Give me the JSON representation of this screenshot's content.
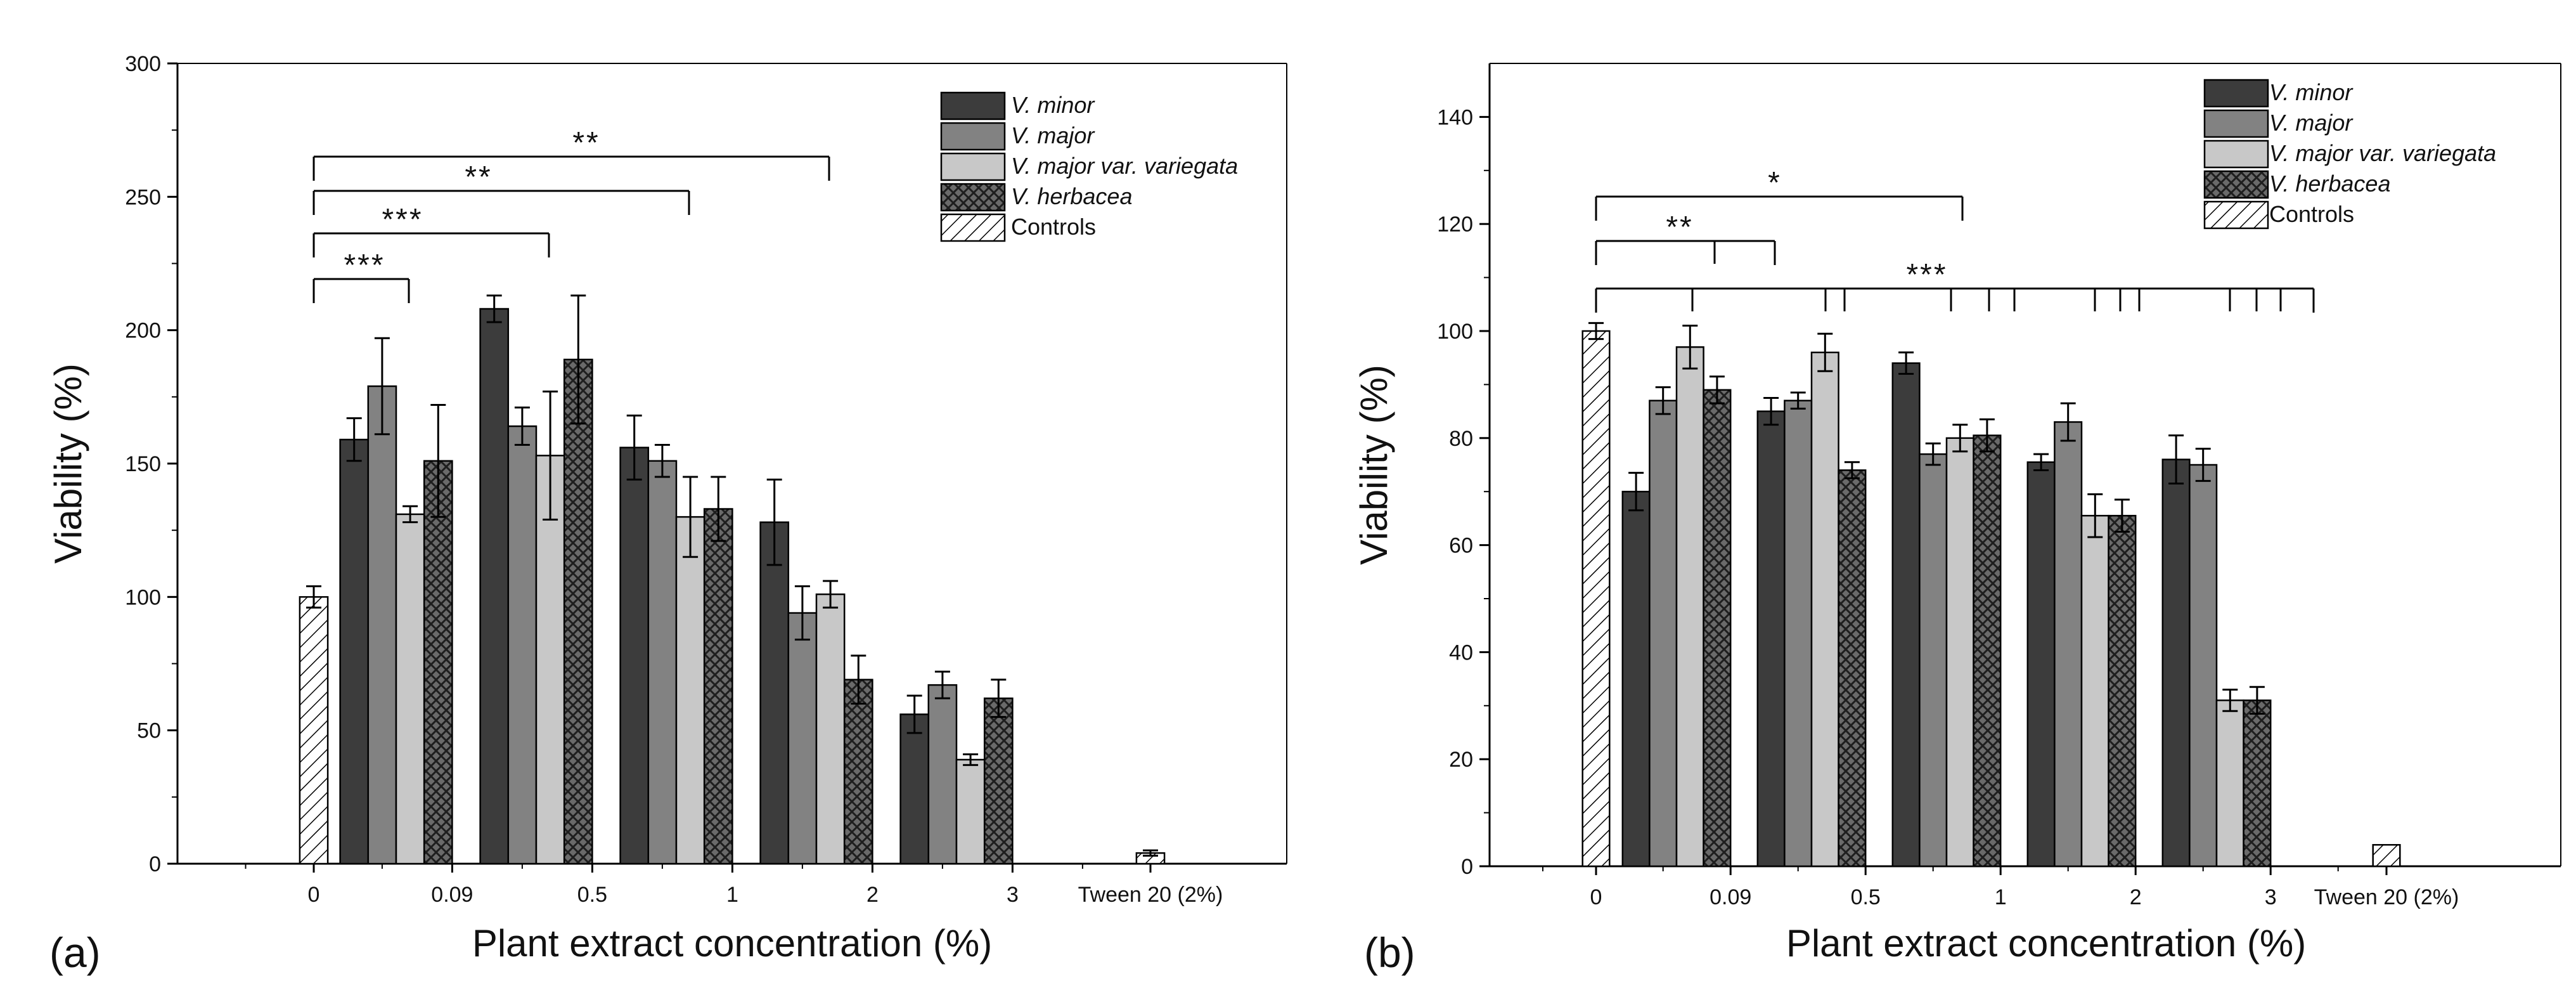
{
  "chart_data": [
    {
      "type": "bar",
      "panel_label": "(a)",
      "xlabel": "Plant extract concentration (%)",
      "ylabel": "Viability (%)",
      "ylim": [
        0,
        300
      ],
      "yticks": [
        0,
        50,
        100,
        150,
        200,
        250,
        300
      ],
      "ytick_labels": [
        "0",
        "50",
        "100",
        "150",
        "200",
        "250",
        "300"
      ],
      "grid": false,
      "legend_position": "top-right",
      "categories": [
        "0.09",
        "0.5",
        "1",
        "2",
        "3"
      ],
      "series": [
        {
          "name": "V. minor",
          "values": [
            159,
            208,
            156,
            128,
            56
          ],
          "errors": [
            8,
            5,
            12,
            16,
            7
          ]
        },
        {
          "name": "V. major",
          "values": [
            179,
            164,
            151,
            94,
            67
          ],
          "errors": [
            18,
            7,
            6,
            10,
            5
          ]
        },
        {
          "name": "V. major var. variegata",
          "values": [
            131,
            153,
            130,
            101,
            39
          ],
          "errors": [
            3,
            24,
            15,
            5,
            2
          ]
        },
        {
          "name": "V. herbacea",
          "values": [
            151,
            189,
            133,
            69,
            62
          ],
          "errors": [
            21,
            24,
            12,
            9,
            7
          ]
        }
      ],
      "controls": {
        "name": "Controls",
        "points": [
          {
            "label": "0",
            "value": 100,
            "error": 4
          },
          {
            "label": "Tween 20 (2%)",
            "value": 4,
            "error": 1
          }
        ]
      },
      "x_labels": [
        "0",
        "0.09",
        "0.5",
        "1",
        "2",
        "3",
        "Tween 20 (2%)"
      ],
      "significance": [
        {
          "text": "***",
          "from": "0",
          "to": "0.09 / V. minor"
        },
        {
          "text": "***",
          "from": "0",
          "to": "0.5 / V. minor"
        },
        {
          "text": "**",
          "from": "0",
          "to": "1 / V. minor"
        },
        {
          "text": "**",
          "from": "0",
          "to": "2 / V. minor"
        }
      ]
    },
    {
      "type": "bar",
      "panel_label": "(b)",
      "xlabel": "Plant extract concentration (%)",
      "ylabel": "Viability (%)",
      "ylim": [
        0,
        150
      ],
      "yticks": [
        0,
        20,
        40,
        60,
        80,
        100,
        120,
        140
      ],
      "ytick_labels": [
        "0",
        "20",
        "40",
        "60",
        "80",
        "100",
        "120",
        "140"
      ],
      "grid": false,
      "legend_position": "top-right",
      "categories": [
        "0.09",
        "0.5",
        "1",
        "2",
        "3"
      ],
      "series": [
        {
          "name": "V. minor",
          "values": [
            70,
            85,
            94,
            75.5,
            76
          ],
          "errors": [
            3.5,
            2.5,
            2,
            1.5,
            4.5
          ]
        },
        {
          "name": "V. major",
          "values": [
            87,
            87,
            77,
            83,
            75
          ],
          "errors": [
            2.5,
            1.5,
            2,
            3.5,
            3
          ]
        },
        {
          "name": "V. major var. variegata",
          "values": [
            97,
            96,
            80,
            65.5,
            31
          ],
          "errors": [
            4,
            3.5,
            2.5,
            4,
            2
          ]
        },
        {
          "name": "V. herbacea",
          "values": [
            89,
            74,
            80.5,
            65.5,
            31
          ],
          "errors": [
            2.5,
            1.5,
            3,
            3,
            2.5
          ]
        }
      ],
      "controls": {
        "name": "Controls",
        "points": [
          {
            "label": "0",
            "value": 100,
            "error": 1.5
          },
          {
            "label": "Tween 20 (2%)",
            "value": 4,
            "error": 0
          }
        ]
      },
      "x_labels": [
        "0",
        "0.09",
        "0.5",
        "1",
        "2",
        "3",
        "Tween 20 (2%)"
      ],
      "significance": [
        {
          "text": "*",
          "from": "0",
          "to": "1 / V. minor"
        },
        {
          "text": "**",
          "from": "0",
          "to": "0.09 / V. major + V. herbacea"
        },
        {
          "text": "***",
          "from": "0",
          "to": "0.09–3 (multiple)"
        }
      ]
    }
  ],
  "colors": {
    "V. minor": "#3c3c3c",
    "V. major": "#828282",
    "V. major var. variegata": "#c8c8c8",
    "V. herbacea": "#666666"
  },
  "patterns": {
    "V. herbacea": "crosshatch",
    "Controls": "diagonal-hatch"
  }
}
